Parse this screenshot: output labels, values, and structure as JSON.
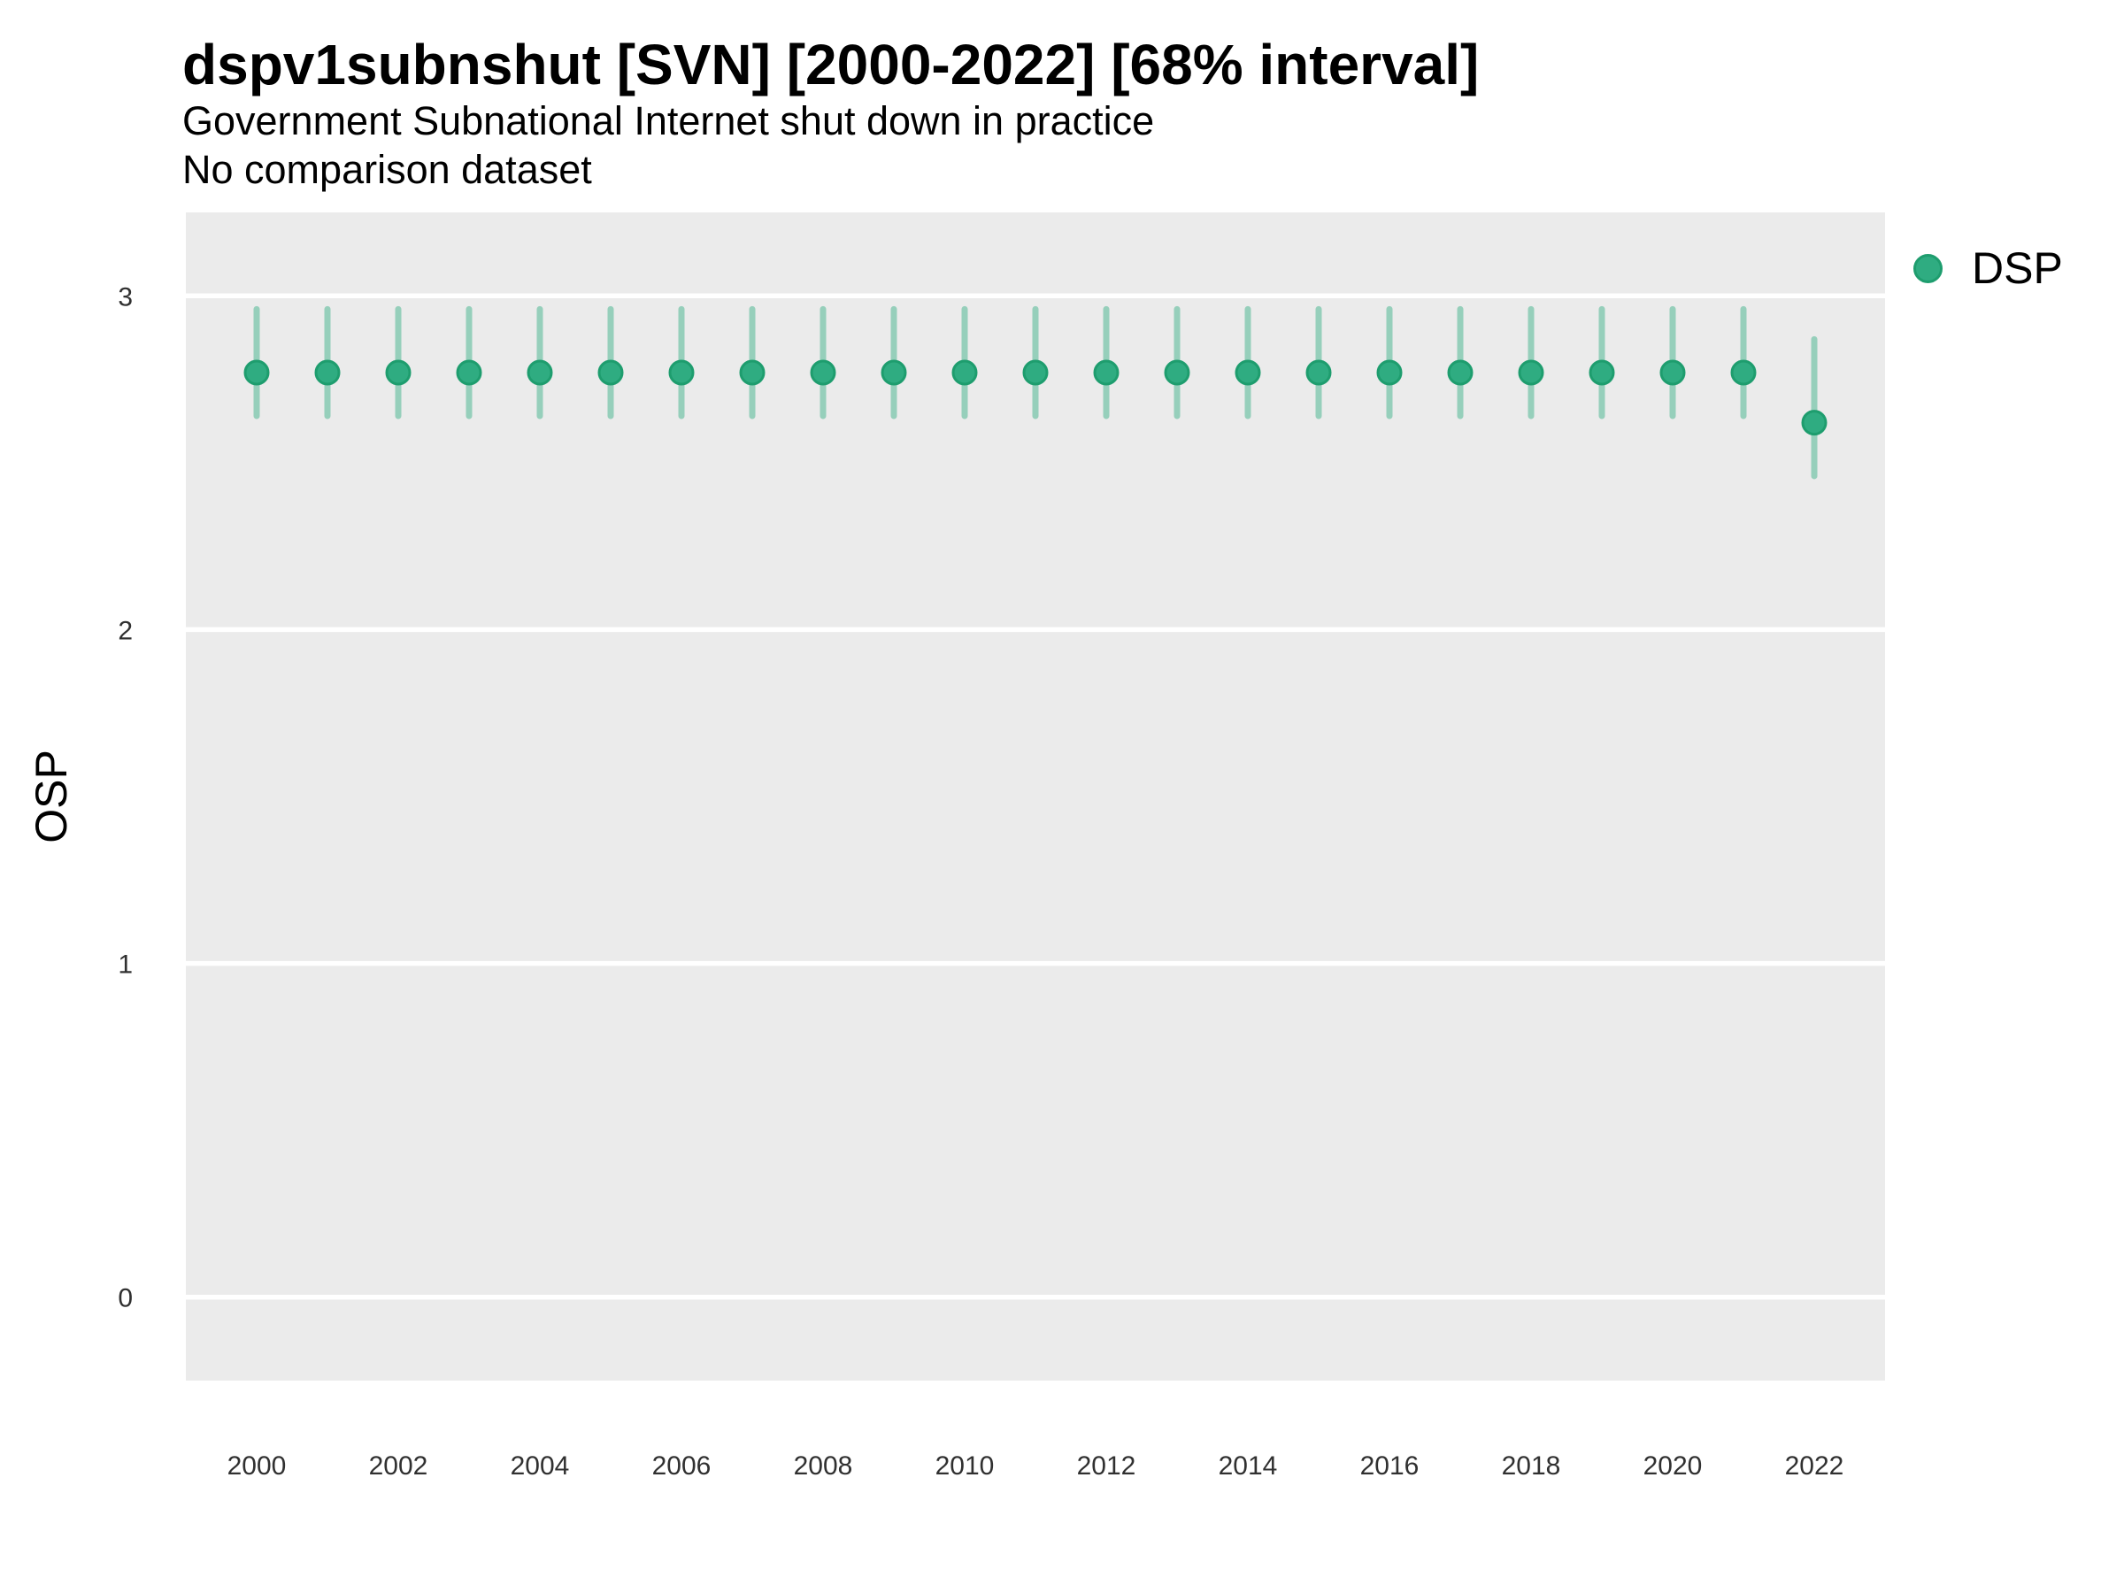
{
  "chart_data": {
    "type": "pointrange",
    "title": "dspv1subnshut [SVN] [2000-2022] [68% interval]",
    "subtitle": "Government Subnational Internet shut down in practice",
    "note": "No comparison dataset",
    "ylabel": "OSP",
    "legend": {
      "label": "DSP",
      "position": "right"
    },
    "x": [
      2000,
      2001,
      2002,
      2003,
      2004,
      2005,
      2006,
      2007,
      2008,
      2009,
      2010,
      2011,
      2012,
      2013,
      2014,
      2015,
      2016,
      2017,
      2018,
      2019,
      2020,
      2021,
      2022
    ],
    "series": [
      {
        "name": "DSP",
        "estimate": [
          2.77,
          2.77,
          2.77,
          2.77,
          2.77,
          2.77,
          2.77,
          2.77,
          2.77,
          2.77,
          2.77,
          2.77,
          2.77,
          2.77,
          2.77,
          2.77,
          2.77,
          2.77,
          2.77,
          2.77,
          2.77,
          2.77,
          2.62
        ],
        "lower": [
          2.64,
          2.64,
          2.64,
          2.64,
          2.64,
          2.64,
          2.64,
          2.64,
          2.64,
          2.64,
          2.64,
          2.64,
          2.64,
          2.64,
          2.64,
          2.64,
          2.64,
          2.64,
          2.64,
          2.64,
          2.64,
          2.64,
          2.46
        ],
        "upper": [
          2.96,
          2.96,
          2.96,
          2.96,
          2.96,
          2.96,
          2.96,
          2.96,
          2.96,
          2.96,
          2.96,
          2.96,
          2.96,
          2.96,
          2.96,
          2.96,
          2.96,
          2.96,
          2.96,
          2.96,
          2.96,
          2.96,
          2.87
        ]
      }
    ],
    "x_ticks": [
      2000,
      2002,
      2004,
      2006,
      2008,
      2010,
      2012,
      2014,
      2016,
      2018,
      2020,
      2022
    ],
    "y_ticks": [
      0,
      1,
      2,
      3
    ],
    "xlim": [
      1999,
      2023
    ],
    "ylim": [
      -0.25,
      3.25
    ],
    "grid": "major-y-white",
    "colors": {
      "point_fill": "#2FAC81",
      "point_stroke": "#1E9D6E",
      "interval": "rgba(47, 172, 129, 0.45)",
      "panel_background": "#EBEBEB",
      "gridline": "#FFFFFF",
      "tick_text": "#303030"
    }
  }
}
